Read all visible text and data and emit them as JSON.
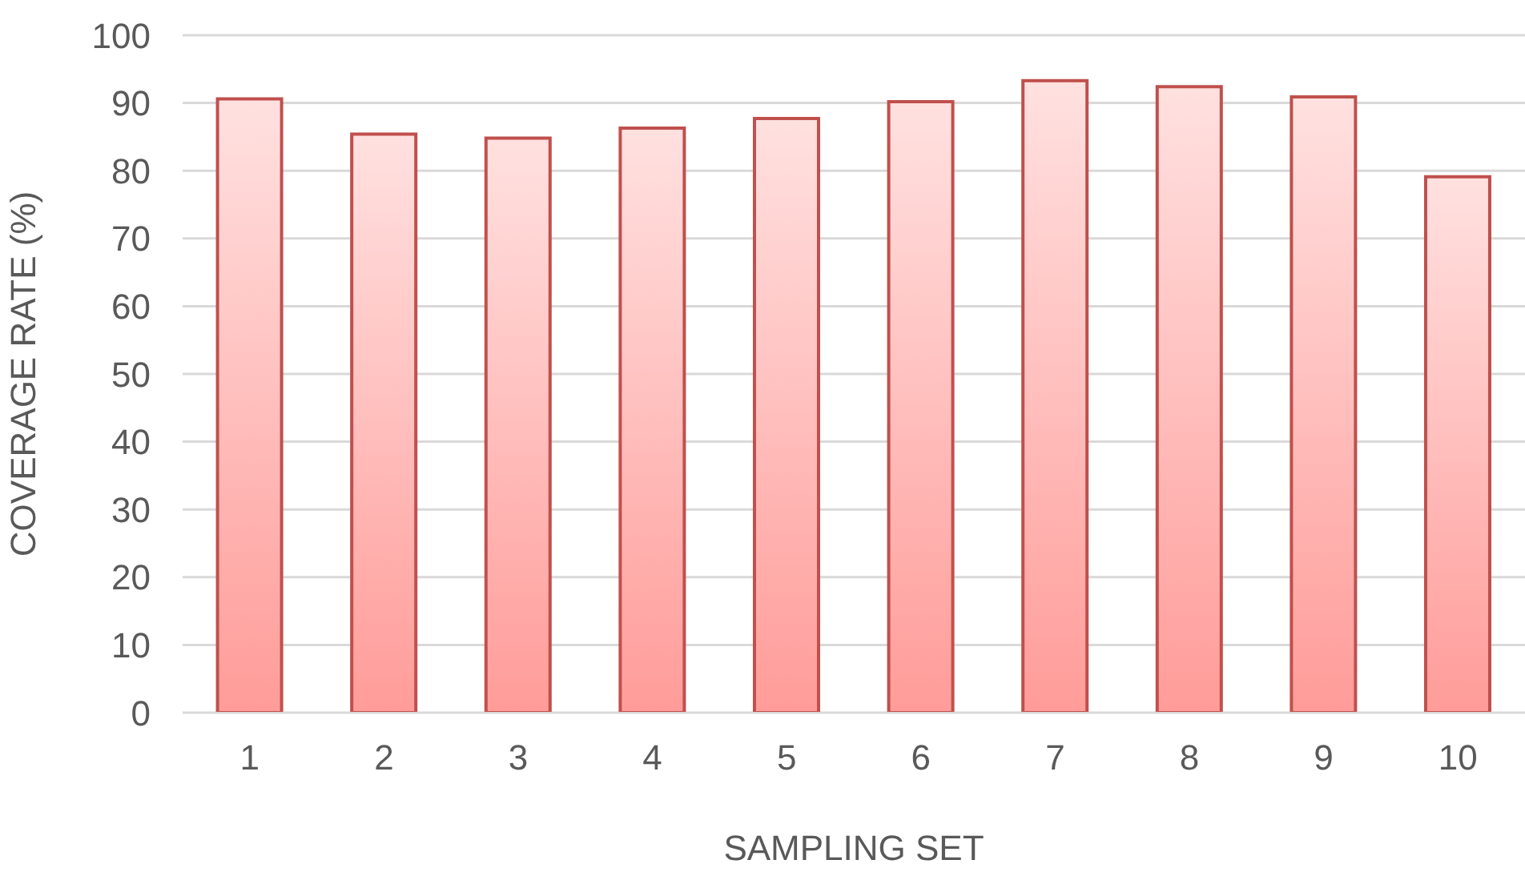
{
  "chart_data": {
    "type": "bar",
    "xlabel": "SAMPLING SET",
    "ylabel": "COVERAGE RATE (%)",
    "categories": [
      "1",
      "2",
      "3",
      "4",
      "5",
      "6",
      "7",
      "8",
      "9",
      "10"
    ],
    "values": [
      90.6,
      85.4,
      84.8,
      86.3,
      87.7,
      90.2,
      93.3,
      92.4,
      90.9,
      79.1
    ],
    "color": "#c0504d",
    "ylim": [
      0,
      100
    ],
    "yticks": [
      0,
      10,
      20,
      30,
      40,
      50,
      60,
      70,
      80,
      90,
      100
    ],
    "grid": "y"
  }
}
